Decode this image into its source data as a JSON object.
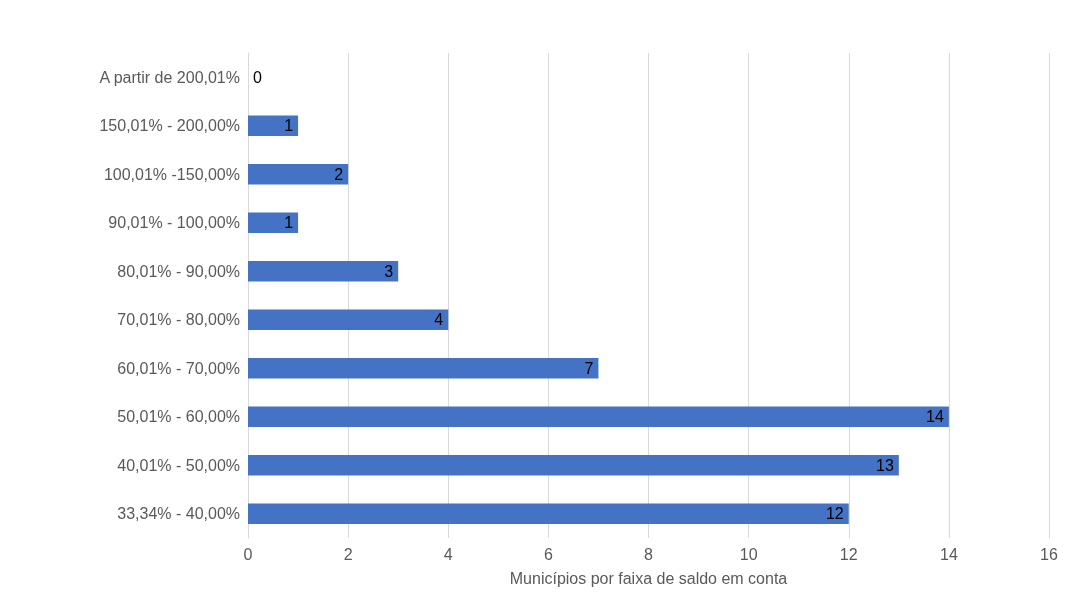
{
  "chart_data": {
    "type": "bar",
    "orientation": "horizontal",
    "xlabel": "Municípios por faixa de saldo em conta",
    "categories": [
      "A partir de 200,01%",
      "150,01% - 200,00%",
      "100,01% -150,00%",
      "90,01% - 100,00%",
      "80,01% - 90,00%",
      "70,01% - 80,00%",
      "60,01% - 70,00%",
      "50,01% - 60,00%",
      "40,01% - 50,00%",
      "33,34% - 40,00%"
    ],
    "values": [
      0,
      1,
      2,
      1,
      3,
      4,
      7,
      14,
      13,
      12
    ],
    "color": "#4472c4",
    "xlim": [
      0,
      16
    ],
    "xticks": [
      0,
      2,
      4,
      6,
      8,
      10,
      12,
      14,
      16
    ],
    "grid": "x",
    "data_labels": true
  }
}
